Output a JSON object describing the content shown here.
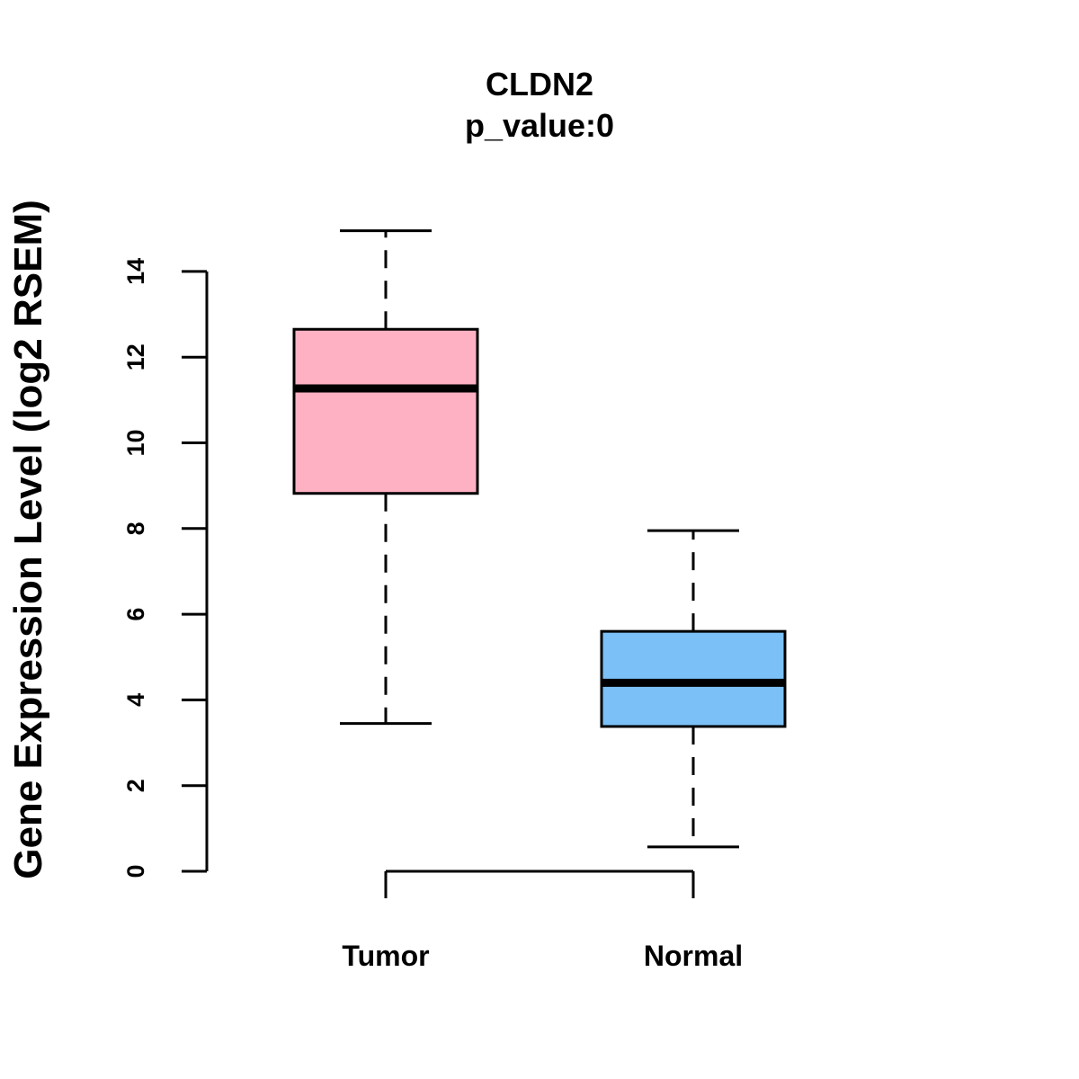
{
  "chart_data": {
    "type": "boxplot",
    "title": "CLDN2",
    "subtitle": "p_value:0",
    "ylabel": "Gene Expression Level (log2 RSEM)",
    "xlabel": "",
    "ylim": [
      0,
      14
    ],
    "yticks": [
      0,
      2,
      4,
      6,
      8,
      10,
      12,
      14
    ],
    "grid": false,
    "categories": [
      "Tumor",
      "Normal"
    ],
    "series": [
      {
        "name": "Tumor",
        "whisker_low": 3.45,
        "q1": 8.82,
        "median": 11.27,
        "q3": 12.65,
        "whisker_high": 14.95,
        "color": "#FDB1C2"
      },
      {
        "name": "Normal",
        "whisker_low": 0.57,
        "q1": 3.38,
        "median": 4.4,
        "q3": 5.6,
        "whisker_high": 7.95,
        "color": "#7BC1F8"
      }
    ]
  }
}
